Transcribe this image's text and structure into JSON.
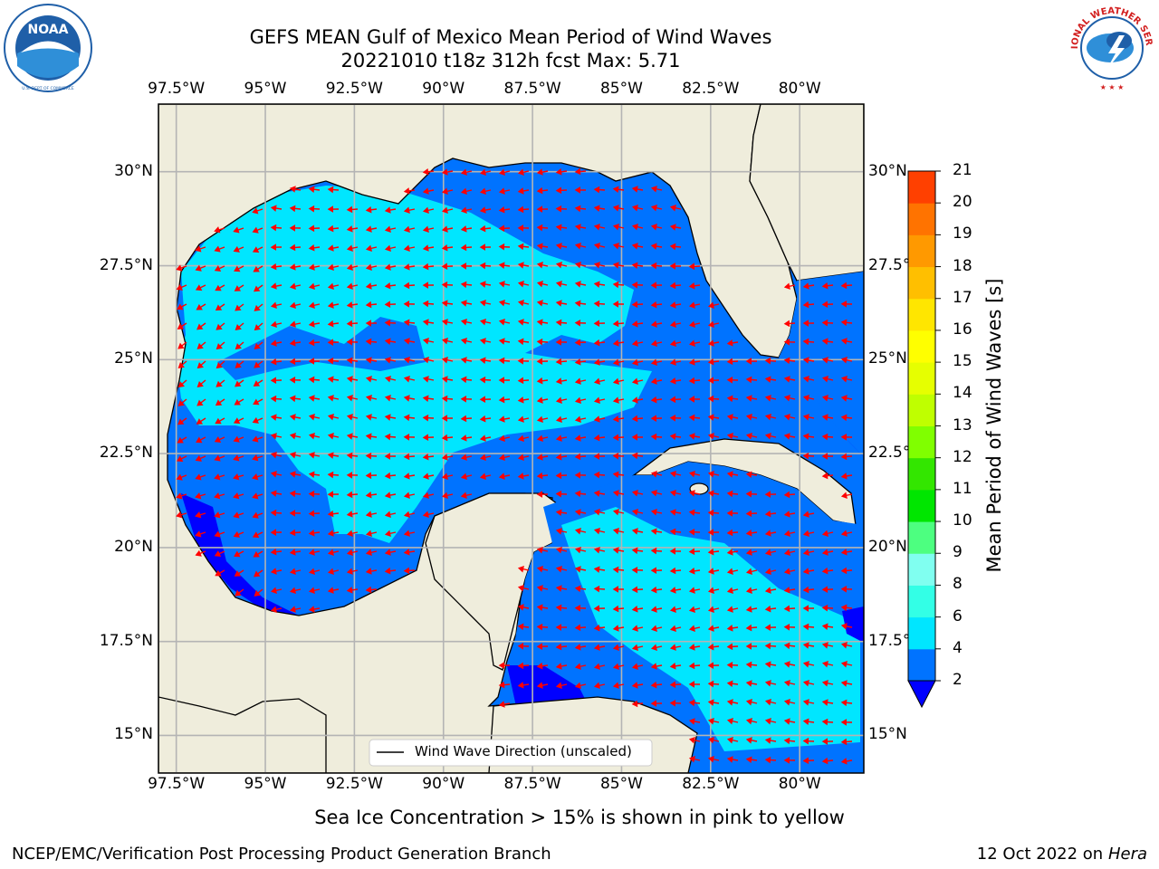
{
  "header": {
    "title_line1": "GEFS MEAN Gulf of Mexico Mean Period of Wind Waves",
    "title_line2": "20221010 t18z 312h fcst   Max: 5.71"
  },
  "logos": {
    "left": {
      "text": "NOAA",
      "ring_text": "NATIONAL OCEANIC AND ATMOSPHERIC ADMINISTRATION · U.S. DEPARTMENT OF COMMERCE",
      "color": "#1f5fa8"
    },
    "right": {
      "ring_text": "NATIONAL WEATHER SERVICE",
      "color": "#d21f1f"
    }
  },
  "map": {
    "lon_ticks": [
      "97.5°W",
      "95°W",
      "92.5°W",
      "90°W",
      "87.5°W",
      "85°W",
      "82.5°W",
      "80°W"
    ],
    "lat_ticks_left": [
      "30°N",
      "27.5°N",
      "25°N",
      "22.5°N",
      "20°N",
      "17.5°N",
      "15°N"
    ],
    "lat_ticks_right": [
      "30°N",
      "27.5°N",
      "25°N",
      "22.5°N",
      "20°N",
      "17.5°N",
      "15°N"
    ],
    "lon_range": [
      -98,
      -78.2
    ],
    "lat_range": [
      14,
      31.8
    ],
    "land_color": "#efeddc",
    "arrow_color": "#ff0000",
    "legend_label": "Wind Wave Direction (unscaled)",
    "wave_direction": "mostly westward"
  },
  "colorbar": {
    "label": "Mean Period of Wind Waves [s]",
    "ticks": [
      "2",
      "4",
      "6",
      "8",
      "9",
      "10",
      "11",
      "12",
      "13",
      "14",
      "15",
      "16",
      "17",
      "18",
      "19",
      "20",
      "21"
    ],
    "colors": [
      "#0073ff",
      "#00e6ff",
      "#33ffe6",
      "#80fff0",
      "#4dff80",
      "#00e600",
      "#33e600",
      "#80ff00",
      "#bfff00",
      "#e6ff00",
      "#ffff00",
      "#ffe600",
      "#ffbf00",
      "#ff9900",
      "#ff7300",
      "#ff4000",
      "#ff0000"
    ],
    "under_color": "#0000ff",
    "extend": "min"
  },
  "footer": {
    "note": "Sea Ice Concentration > 15% is shown in pink to yellow",
    "left": "NCEP/EMC/Verification Post Processing Product Generation Branch",
    "right_prefix": "12 Oct 2022 on ",
    "right_host": "Hera"
  }
}
